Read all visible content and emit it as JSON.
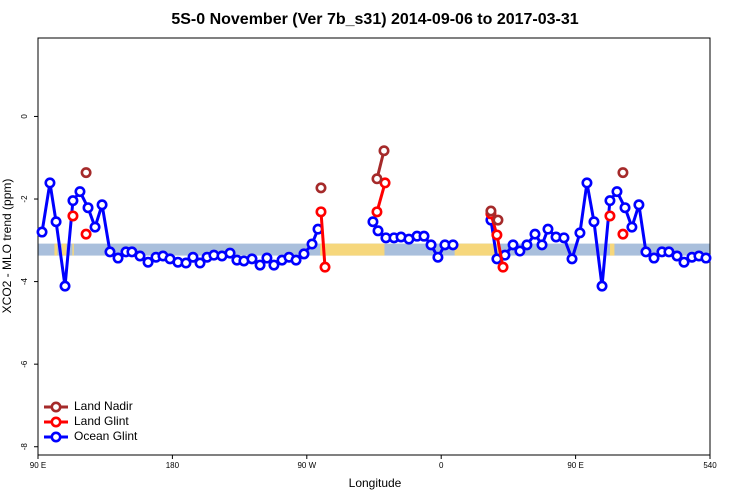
{
  "chart_data": {
    "type": "line",
    "title": "5S-0 November (Ver 7b_s31)   2014-09-06 to 2017-03-31",
    "x_label": "Longitude",
    "y_label": "XCO2 - MLO trend (ppm)",
    "xlim": [
      90,
      540
    ],
    "ylim": [
      -8.2,
      1.9
    ],
    "xticks": [
      {
        "value": 90,
        "label": "90 E"
      },
      180,
      {
        "value": 270,
        "label": "90 W"
      },
      {
        "value": 360,
        "label": "0"
      },
      {
        "value": 450,
        "label": "90 E"
      },
      540
    ],
    "yticks": [
      0,
      -2,
      -4,
      -6,
      -8
    ],
    "legend": "bottom left",
    "band": {
      "range": [
        -3.08,
        -3.37
      ],
      "color": "#a9bfdc",
      "segment_color": "#f6d77c",
      "segments": [
        [
          101,
          103
        ],
        [
          106,
          109
        ],
        [
          113,
          114
        ],
        [
          279,
          322
        ],
        [
          369,
          399
        ],
        [
          473,
          476
        ]
      ]
    },
    "series": [
      {
        "name": "Land Nadir",
        "color": "#a52a2a",
        "x": [
          122.2,
          null,
          279.5,
          null,
          317.0,
          321.7,
          null,
          393.3,
          398.0,
          null,
          481.7
        ],
        "values": [
          -1.36,
          null,
          -1.73,
          null,
          -1.51,
          -0.83,
          null,
          -2.29,
          -2.51,
          null,
          -1.36
        ]
      },
      {
        "name": "Land Glint",
        "color": "#ff0000",
        "x": [
          113.4,
          null,
          122.2,
          null,
          279.5,
          282.2,
          null,
          317.0,
          322.4,
          null,
          393.3,
          397.3,
          401.4,
          null,
          473.0,
          null,
          481.7
        ],
        "values": [
          -2.41,
          null,
          -2.85,
          null,
          -2.31,
          -3.65,
          null,
          -2.31,
          -1.61,
          null,
          -2.36,
          -2.87,
          -3.65,
          null,
          -2.41,
          null,
          -2.85
        ]
      },
      {
        "name": "Ocean Glint",
        "color": "#0000ff",
        "x": [
          92.7,
          98.0,
          102.1,
          108.1,
          113.4,
          118.1,
          123.5,
          128.2,
          132.9,
          138.2,
          143.6,
          148.9,
          152.9,
          158.3,
          163.7,
          169.0,
          173.7,
          178.4,
          183.7,
          189.1,
          193.8,
          198.5,
          203.2,
          207.8,
          213.2,
          218.6,
          223.2,
          227.9,
          233.3,
          238.7,
          243.3,
          248.0,
          253.4,
          258.1,
          262.8,
          268.1,
          273.5,
          277.5,
          null,
          314.3,
          317.7,
          323.0,
          328.4,
          333.1,
          338.4,
          343.8,
          348.5,
          353.2,
          357.8,
          362.5,
          367.9,
          null,
          393.3,
          397.3,
          402.7,
          408.1,
          412.7,
          417.4,
          422.8,
          427.5,
          431.5,
          436.9,
          442.2,
          447.6,
          452.9,
          457.6,
          462.3,
          467.7,
          473.0,
          477.7,
          483.1,
          487.7,
          492.4,
          497.1,
          502.5,
          507.8,
          512.5,
          517.9,
          522.6,
          527.9,
          532.6,
          537.3
        ],
        "values": [
          -2.8,
          -1.61,
          -2.55,
          -4.11,
          -2.04,
          -1.82,
          -2.21,
          -2.68,
          -2.14,
          -3.28,
          -3.43,
          -3.28,
          -3.28,
          -3.38,
          -3.53,
          -3.41,
          -3.38,
          -3.45,
          -3.53,
          -3.55,
          -3.41,
          -3.55,
          -3.41,
          -3.36,
          -3.38,
          -3.31,
          -3.48,
          -3.5,
          -3.45,
          -3.6,
          -3.43,
          -3.6,
          -3.48,
          -3.41,
          -3.48,
          -3.33,
          -3.09,
          -2.73,
          null,
          -2.55,
          -2.77,
          -2.94,
          -2.94,
          -2.92,
          -2.97,
          -2.9,
          -2.9,
          -3.11,
          -3.41,
          -3.11,
          -3.11,
          null,
          -2.51,
          -3.45,
          -3.36,
          -3.11,
          -3.26,
          -3.11,
          -2.85,
          -3.11,
          -2.73,
          -2.92,
          -2.94,
          -3.45,
          -2.82,
          -1.61,
          -2.55,
          -4.11,
          -2.04,
          -1.82,
          -2.21,
          -2.68,
          -2.14,
          -3.28,
          -3.43,
          -3.28,
          -3.28,
          -3.38,
          -3.53,
          -3.41,
          -3.38,
          -3.43
        ]
      }
    ]
  }
}
